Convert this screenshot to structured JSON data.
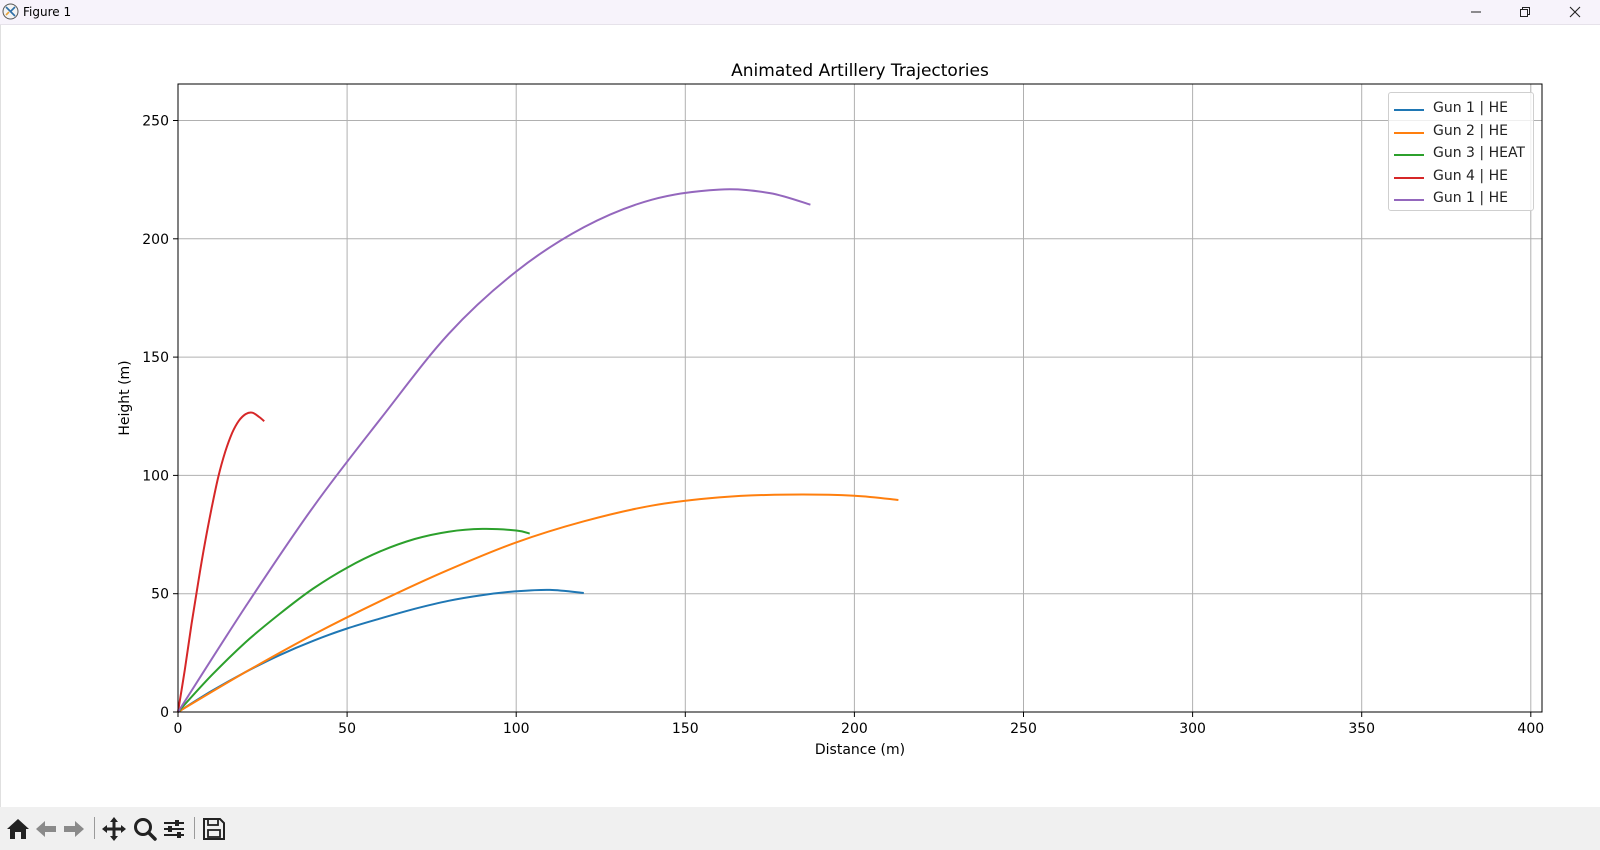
{
  "window": {
    "title": "Figure 1"
  },
  "toolbar": {
    "buttons": [
      "home-icon",
      "back-arrow-icon",
      "forward-arrow-icon",
      "pan-icon",
      "zoom-icon",
      "configure-subplots-icon",
      "save-icon"
    ]
  },
  "chart_data": {
    "type": "line",
    "title": "Animated Artillery Trajectories",
    "xlabel": "Distance (m)",
    "ylabel": "Height (m)",
    "xlim": [
      0,
      405
    ],
    "ylim": [
      0,
      265
    ],
    "xticks": [
      0,
      50,
      100,
      150,
      200,
      250,
      300,
      350,
      400
    ],
    "yticks": [
      0,
      50,
      100,
      150,
      200,
      250
    ],
    "grid": true,
    "legend_position": "top-right",
    "series": [
      {
        "name": "Gun 1 | HE",
        "color": "#1f77b4",
        "x": [
          0,
          10,
          20,
          30,
          40,
          50,
          60,
          70,
          80,
          90,
          100,
          110,
          120
        ],
        "y": [
          0,
          8.9,
          16.9,
          24.0,
          30.1,
          35.3,
          39.6,
          43.6,
          47.0,
          49.4,
          51.0,
          51.6,
          50.3
        ]
      },
      {
        "name": "Gun 2 | HE",
        "color": "#ff7f0e",
        "x": [
          0,
          20,
          40,
          60,
          80,
          100,
          120,
          140,
          160,
          180,
          200,
          213
        ],
        "y": [
          0,
          16.9,
          32.7,
          47.0,
          60.1,
          71.7,
          80.6,
          87.2,
          90.7,
          91.9,
          91.4,
          89.6
        ]
      },
      {
        "name": "Gun 3 | HEAT",
        "color": "#2ca02c",
        "x": [
          0,
          10,
          20,
          30,
          40,
          50,
          60,
          70,
          80,
          90,
          100,
          104
        ],
        "y": [
          0,
          15.6,
          29.5,
          41.4,
          52.2,
          61.0,
          68.0,
          73.1,
          76.2,
          77.4,
          76.7,
          75.4
        ]
      },
      {
        "name": "Gun 4 | HE",
        "color": "#d62728",
        "x": [
          0,
          2,
          4,
          6,
          8,
          10,
          12,
          14,
          16,
          18,
          20,
          22,
          24,
          25.5
        ],
        "y": [
          0,
          17.8,
          37.1,
          55.0,
          71.8,
          86.6,
          99.9,
          110.1,
          117.9,
          123.1,
          125.9,
          126.5,
          124.7,
          122.9
        ]
      },
      {
        "name": "Gun 1 | HE",
        "color": "#9467bd",
        "x": [
          0,
          20,
          40,
          60,
          80,
          100,
          120,
          140,
          160,
          175,
          187
        ],
        "y": [
          0,
          44.6,
          86.7,
          124.1,
          159.8,
          186.2,
          204.9,
          216.5,
          220.8,
          219.3,
          214.4
        ]
      }
    ]
  }
}
